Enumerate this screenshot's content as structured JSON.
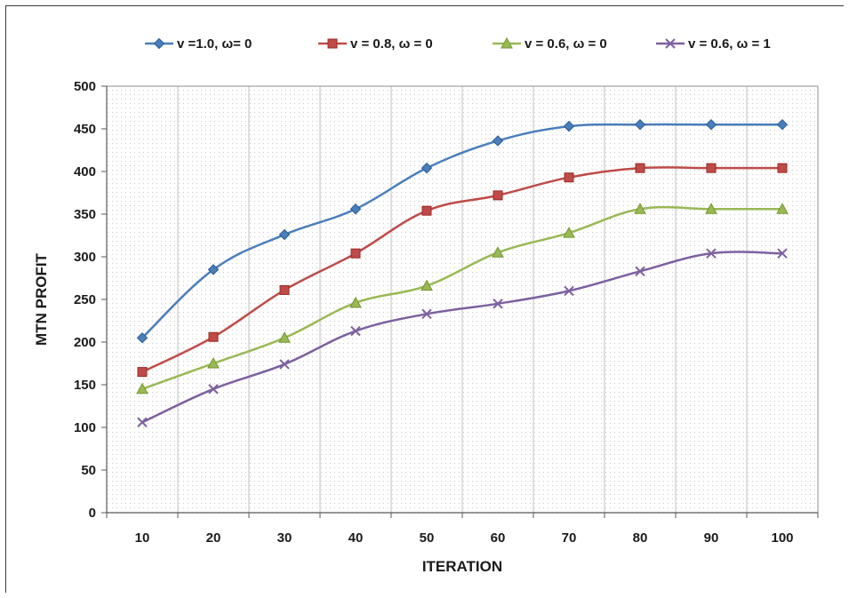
{
  "chart_data": {
    "type": "line",
    "xlabel": "ITERATION",
    "ylabel": "MTN PROFIT",
    "x": [
      10,
      20,
      30,
      40,
      50,
      60,
      70,
      80,
      90,
      100
    ],
    "ylim": [
      0,
      500
    ],
    "yticks": [
      0,
      50,
      100,
      150,
      200,
      250,
      300,
      350,
      400,
      450,
      500
    ],
    "grid": "vertical",
    "legend_position": "top",
    "series": [
      {
        "name": "v =1.0, ω= 0",
        "color": "#4a7ebb",
        "marker": "diamond",
        "values": [
          205,
          285,
          326,
          356,
          404,
          436,
          453,
          455,
          455,
          455
        ]
      },
      {
        "name": "v = 0.8, ω = 0",
        "color": "#be4b48",
        "marker": "square",
        "values": [
          165,
          206,
          261,
          304,
          354,
          372,
          393,
          404,
          404,
          404
        ]
      },
      {
        "name": "v = 0.6, ω = 0",
        "color": "#98b954",
        "marker": "triangle",
        "values": [
          145,
          175,
          205,
          246,
          266,
          305,
          328,
          356,
          356,
          356
        ]
      },
      {
        "name": "v = 0.6, ω = 1",
        "color": "#7d60a0",
        "marker": "x",
        "values": [
          106,
          145,
          174,
          213,
          233,
          245,
          260,
          283,
          304,
          304
        ]
      }
    ]
  }
}
